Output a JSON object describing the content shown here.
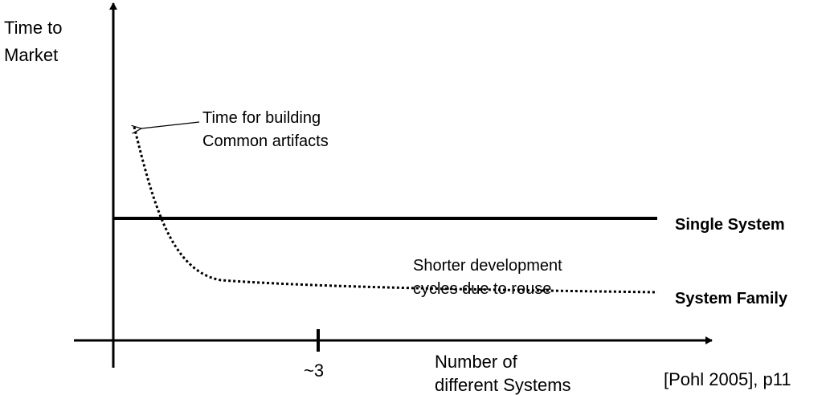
{
  "y_axis": {
    "label_line1": "Time to",
    "label_line2": "Market"
  },
  "x_axis": {
    "label_line1": "Number of",
    "label_line2": "different Systems",
    "tick_label": "~3"
  },
  "annotations": {
    "common_line1": "Time for building",
    "common_line2": "Common artifacts",
    "reuse_line1": "Shorter development",
    "reuse_line2": "cycles due to reuse"
  },
  "series": {
    "single_system": {
      "label": "Single System",
      "style": "solid"
    },
    "system_family": {
      "label": "System Family",
      "style": "dotted"
    }
  },
  "citation": "[Pohl 2005], p11",
  "colors": {
    "ink": "#000000",
    "background": "#ffffff"
  }
}
